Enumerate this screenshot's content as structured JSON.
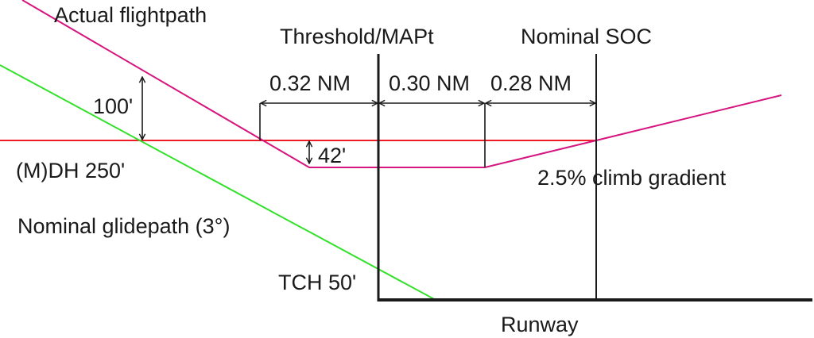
{
  "labels": {
    "actual_flightpath": "Actual flightpath",
    "threshold_mapt": "Threshold/MAPt",
    "nominal_soc": "Nominal SOC",
    "dist_1": "0.32 NM",
    "dist_2": "0.30 NM",
    "dist_3": "0.28 NM",
    "height_100": "100'",
    "height_42": "42'",
    "mdh": "(M)DH 250'",
    "climb_gradient": "2.5% climb gradient",
    "nominal_glidepath": "Nominal glidepath (3°)",
    "tch": "TCH 50'",
    "runway": "Runway"
  },
  "colors": {
    "actual_flightpath": "#d6157e",
    "nominal_glidepath": "#33e12b",
    "decision_height": "#ee1b24",
    "structure": "#1a1a1a"
  }
}
